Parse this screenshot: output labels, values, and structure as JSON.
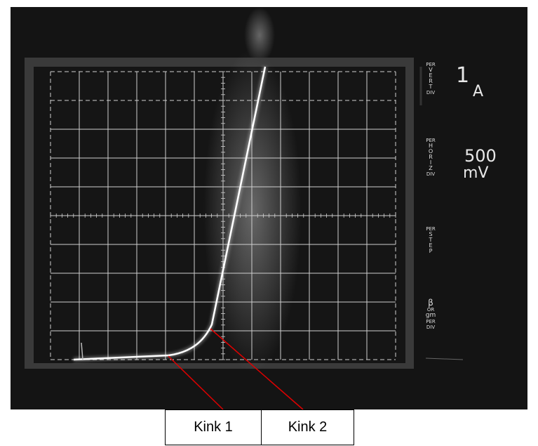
{
  "panel": [
    {
      "lines": [
        "PER",
        "VERT",
        "DIV"
      ],
      "value": "1",
      "unit": "A"
    },
    {
      "lines": [
        "PER",
        "HORIZ",
        "DIV"
      ],
      "value": "500",
      "unit": "mV"
    },
    {
      "lines": [
        "PER",
        "STEP"
      ]
    },
    {
      "lines": [
        "β",
        "OR",
        "gm",
        "PER",
        "DIV"
      ]
    }
  ],
  "annotations": [
    "Kink 1",
    "Kink 2"
  ]
}
